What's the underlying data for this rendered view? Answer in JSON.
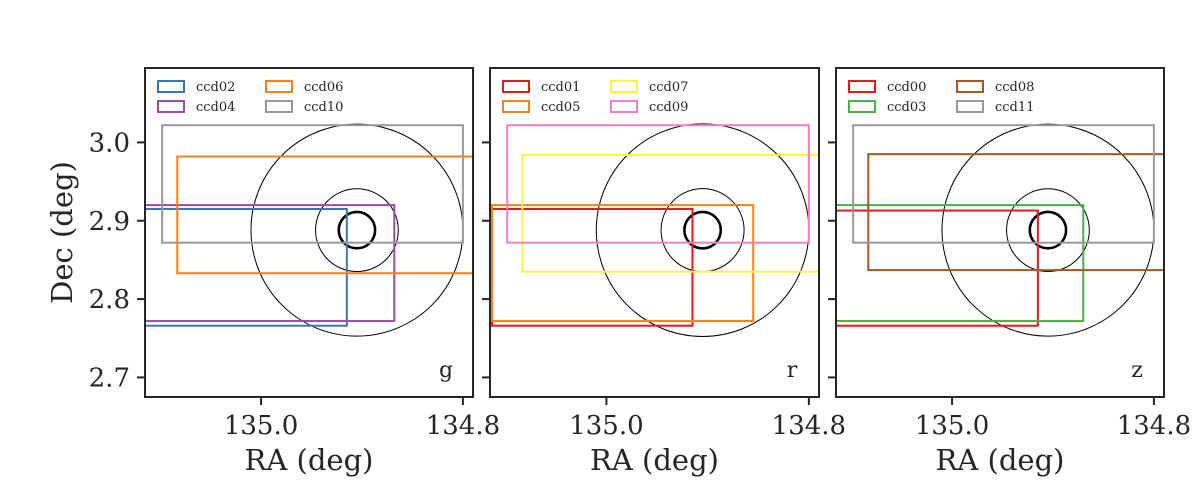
{
  "chart_data": [
    {
      "type": "footprint",
      "band_label": "g",
      "xlabel": "RA (deg)",
      "ylabel": "Dec (deg)",
      "xlim": [
        135.115,
        134.79
      ],
      "ylim": [
        2.675,
        3.095
      ],
      "xticks": [
        "135.0",
        "134.8"
      ],
      "yticks": [
        "3.0",
        "2.9",
        "2.8",
        "2.7"
      ],
      "grid": false,
      "legend_location": "upper-left",
      "circles": {
        "center": [
          134.905,
          2.888
        ],
        "radii": [
          0.018,
          0.041,
          0.105
        ],
        "bold_index": 0
      },
      "series": [
        {
          "name": "ccd02",
          "color": "#3a78b1",
          "ra_range": [
            135.115,
            134.915
          ],
          "dec_range": [
            2.766,
            2.915
          ]
        },
        {
          "name": "ccd04",
          "color": "#9a4fa4",
          "ra_range": [
            135.115,
            134.868
          ],
          "dec_range": [
            2.772,
            2.92
          ]
        },
        {
          "name": "ccd06",
          "color": "#f58220",
          "ra_range": [
            135.083,
            134.785
          ],
          "dec_range": [
            2.833,
            2.982
          ]
        },
        {
          "name": "ccd10",
          "color": "#999999",
          "ra_range": [
            135.098,
            134.8
          ],
          "dec_range": [
            2.872,
            3.022
          ]
        }
      ]
    },
    {
      "type": "footprint",
      "band_label": "r",
      "xlabel": "RA (deg)",
      "ylabel": "",
      "xlim": [
        135.115,
        134.79
      ],
      "ylim": [
        2.675,
        3.095
      ],
      "xticks": [
        "135.0",
        "134.8"
      ],
      "yticks": [],
      "grid": false,
      "legend_location": "upper-left",
      "circles": {
        "center": [
          134.905,
          2.888
        ],
        "radii": [
          0.018,
          0.041,
          0.105
        ],
        "bold_index": 0
      },
      "series": [
        {
          "name": "ccd01",
          "color": "#e31a1c",
          "ra_range": [
            135.113,
            134.915
          ],
          "dec_range": [
            2.766,
            2.915
          ]
        },
        {
          "name": "ccd05",
          "color": "#f58220",
          "ra_range": [
            135.113,
            134.855
          ],
          "dec_range": [
            2.772,
            2.92
          ]
        },
        {
          "name": "ccd07",
          "color": "#f7f73f",
          "ra_range": [
            135.083,
            134.785
          ],
          "dec_range": [
            2.835,
            2.984
          ]
        },
        {
          "name": "ccd09",
          "color": "#f180c0",
          "ra_range": [
            135.098,
            134.8
          ],
          "dec_range": [
            2.872,
            3.022
          ]
        }
      ]
    },
    {
      "type": "footprint",
      "band_label": "z",
      "xlabel": "RA (deg)",
      "ylabel": "",
      "xlim": [
        135.115,
        134.79
      ],
      "ylim": [
        2.675,
        3.095
      ],
      "xticks": [
        "135.0",
        "134.8"
      ],
      "yticks": [],
      "grid": false,
      "legend_location": "upper-left",
      "circles": {
        "center": [
          134.905,
          2.888
        ],
        "radii": [
          0.018,
          0.041,
          0.105
        ],
        "bold_index": 0
      },
      "series": [
        {
          "name": "ccd00",
          "color": "#e31a1c",
          "ra_range": [
            135.115,
            134.915
          ],
          "dec_range": [
            2.766,
            2.913
          ]
        },
        {
          "name": "ccd03",
          "color": "#4daf4a",
          "ra_range": [
            135.115,
            134.87
          ],
          "dec_range": [
            2.772,
            2.92
          ]
        },
        {
          "name": "ccd08",
          "color": "#a65628",
          "ra_range": [
            135.083,
            134.785
          ],
          "dec_range": [
            2.837,
            2.985
          ]
        },
        {
          "name": "ccd11",
          "color": "#999999",
          "ra_range": [
            135.098,
            134.8
          ],
          "dec_range": [
            2.872,
            3.022
          ]
        }
      ]
    }
  ]
}
